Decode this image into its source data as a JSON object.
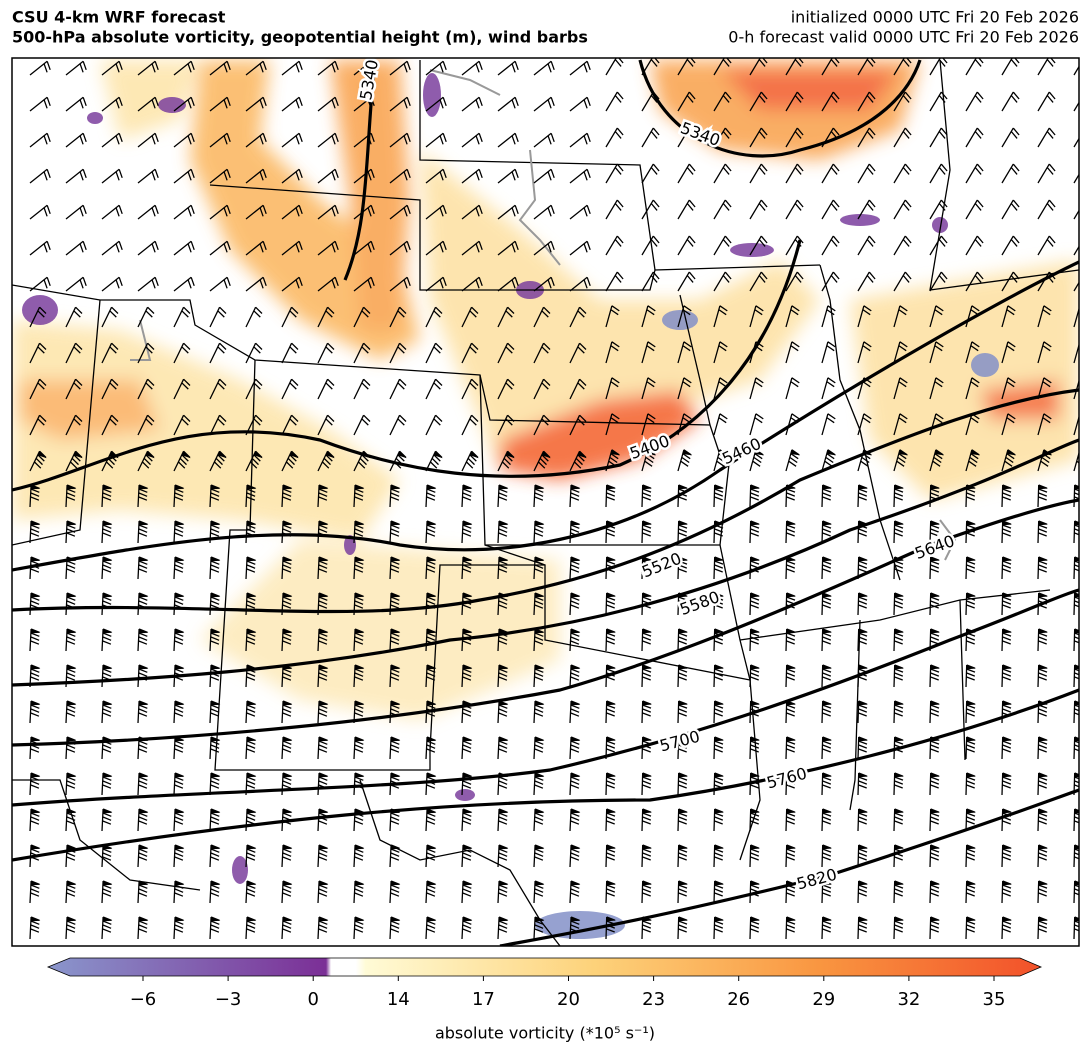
{
  "header": {
    "title_left": [
      "CSU 4-km WRF forecast",
      "500-hPa absolute vorticity, geopotential height (m), wind barbs"
    ],
    "title_right": [
      "initialized 0000 UTC Fri 20 Feb 2026",
      "0-h forecast valid 0000 UTC Fri 20 Feb 2026"
    ]
  },
  "map": {
    "contours": [
      {
        "level": 5340
      },
      {
        "level": 5340
      },
      {
        "level": 5400
      },
      {
        "level": 5460
      },
      {
        "level": 5520
      },
      {
        "level": 5580
      },
      {
        "level": 5640
      },
      {
        "level": 5700
      },
      {
        "level": 5760
      },
      {
        "level": 5820
      }
    ]
  },
  "colorbar": {
    "label": "absolute vorticity (*10⁵ s⁻¹)",
    "ticks": [
      {
        "value": -6,
        "label": "−6"
      },
      {
        "value": -3,
        "label": "−3"
      },
      0,
      14,
      17,
      20,
      23,
      26,
      29,
      32,
      35
    ]
  }
}
